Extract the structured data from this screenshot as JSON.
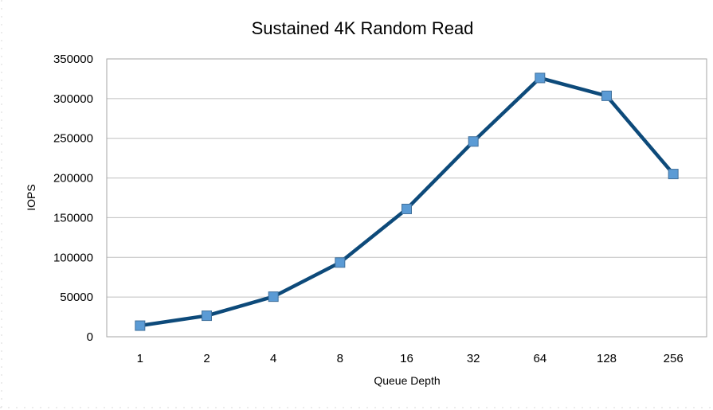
{
  "chart_data": {
    "type": "line",
    "title": "Sustained 4K Random Read",
    "xlabel": "Queue Depth",
    "ylabel": "IOPS",
    "categories": [
      "1",
      "2",
      "4",
      "8",
      "16",
      "32",
      "64",
      "128",
      "256"
    ],
    "series": [
      {
        "values": [
          14000,
          26500,
          50500,
          93500,
          161000,
          246000,
          326000,
          303500,
          205000
        ]
      }
    ],
    "y_ticks": [
      "0",
      "50000",
      "100000",
      "150000",
      "200000",
      "250000",
      "300000",
      "350000"
    ],
    "ylim": [
      0,
      350000
    ],
    "grid": true,
    "legend": "none",
    "colors": {
      "line": "#0d4a7a",
      "marker": "#5b9bd5",
      "marker_stroke": "#41719c",
      "grid": "#bfbfbf",
      "frame": "#a6a6a6"
    }
  }
}
